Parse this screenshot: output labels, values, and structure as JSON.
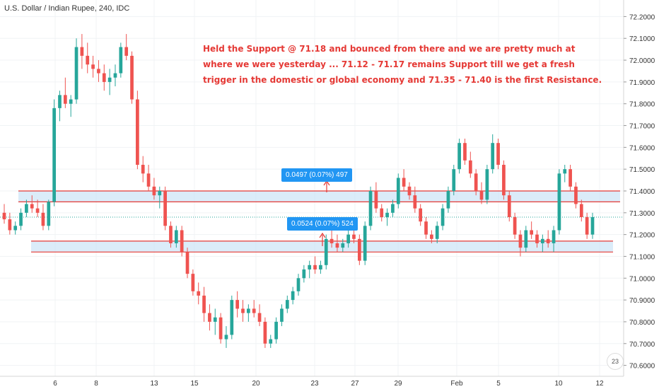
{
  "header": {
    "title": "U.S. Dollar / Indian Rupee, 240, IDC"
  },
  "annotation": {
    "lines": [
      "Held the Support @ 71.18 and bounced from there and we are pretty much at",
      "where we were yesterday ... 71.12 - 71.17 remains Support till we get a fresh",
      "trigger in the domestic or global economy and 71.35 - 71.40 is the first Resistance."
    ]
  },
  "measures": [
    {
      "text": "0.0497 (0.07%) 497"
    },
    {
      "text": "0.0524 (0.07%) 524"
    }
  ],
  "badge": {
    "text": "23"
  },
  "colors": {
    "up": "#26a69a",
    "down": "#ef5350",
    "zone_fill": "#cfe6f7",
    "zone_line": "#e53935",
    "label_bg": "#2196f3"
  },
  "chart_data": {
    "type": "candlestick",
    "title": "U.S. Dollar / Indian Rupee, 240, IDC",
    "ylim": [
      70.55,
      72.25
    ],
    "y_ticks": [
      "72.2000",
      "72.1000",
      "72.0000",
      "71.9000",
      "71.8000",
      "71.7000",
      "71.6000",
      "71.5000",
      "71.4000",
      "71.3000",
      "71.2000",
      "71.1000",
      "71.0000",
      "70.9000",
      "70.8000",
      "70.7000",
      "70.6000"
    ],
    "x_tick_labels": [
      "6",
      "8",
      "13",
      "15",
      "20",
      "23",
      "27",
      "29",
      "Feb",
      "5",
      "10",
      "12"
    ],
    "last_price": 71.28,
    "zones": [
      {
        "name": "Resistance",
        "low": 71.35,
        "high": 71.4
      },
      {
        "name": "Support",
        "low": 71.12,
        "high": 71.17
      }
    ],
    "candles": [
      [
        71.3,
        71.34,
        71.25,
        71.27
      ],
      [
        71.27,
        71.3,
        71.2,
        71.22
      ],
      [
        71.22,
        71.26,
        71.2,
        71.24
      ],
      [
        71.24,
        71.32,
        71.22,
        71.3
      ],
      [
        71.3,
        71.36,
        71.28,
        71.34
      ],
      [
        71.34,
        71.38,
        71.3,
        71.32
      ],
      [
        71.32,
        71.36,
        71.28,
        71.3
      ],
      [
        71.3,
        71.34,
        71.22,
        71.24
      ],
      [
        71.24,
        71.36,
        71.22,
        71.35
      ],
      [
        71.35,
        71.82,
        71.33,
        71.78
      ],
      [
        71.78,
        71.86,
        71.72,
        71.84
      ],
      [
        71.84,
        71.92,
        71.78,
        71.8
      ],
      [
        71.8,
        71.84,
        71.74,
        71.82
      ],
      [
        71.82,
        72.1,
        71.8,
        72.06
      ],
      [
        72.06,
        72.12,
        71.96,
        72.02
      ],
      [
        72.02,
        72.08,
        71.94,
        71.98
      ],
      [
        71.98,
        72.02,
        71.92,
        71.96
      ],
      [
        71.96,
        72.0,
        71.9,
        71.94
      ],
      [
        71.94,
        71.98,
        71.86,
        71.9
      ],
      [
        71.9,
        71.96,
        71.84,
        71.92
      ],
      [
        71.92,
        71.98,
        71.88,
        71.94
      ],
      [
        71.94,
        72.08,
        71.92,
        72.06
      ],
      [
        72.06,
        72.12,
        72.0,
        72.02
      ],
      [
        72.02,
        72.04,
        71.8,
        71.82
      ],
      [
        71.82,
        71.86,
        71.5,
        71.52
      ],
      [
        71.52,
        71.56,
        71.44,
        71.48
      ],
      [
        71.48,
        71.52,
        71.4,
        71.42
      ],
      [
        71.42,
        71.46,
        71.36,
        71.38
      ],
      [
        71.38,
        71.42,
        71.32,
        71.4
      ],
      [
        71.4,
        71.42,
        71.22,
        71.24
      ],
      [
        71.24,
        71.26,
        71.14,
        71.16
      ],
      [
        71.16,
        71.24,
        71.14,
        71.22
      ],
      [
        71.22,
        71.24,
        71.1,
        71.12
      ],
      [
        71.12,
        71.14,
        71.0,
        71.02
      ],
      [
        71.02,
        71.04,
        70.92,
        70.94
      ],
      [
        70.94,
        70.98,
        70.88,
        70.92
      ],
      [
        70.92,
        70.96,
        70.8,
        70.84
      ],
      [
        70.84,
        70.88,
        70.76,
        70.8
      ],
      [
        70.8,
        70.86,
        70.74,
        70.82
      ],
      [
        70.82,
        70.84,
        70.7,
        70.72
      ],
      [
        70.72,
        70.78,
        70.68,
        70.74
      ],
      [
        70.74,
        70.92,
        70.72,
        70.9
      ],
      [
        70.9,
        70.94,
        70.82,
        70.86
      ],
      [
        70.86,
        70.9,
        70.8,
        70.84
      ],
      [
        70.84,
        70.88,
        70.8,
        70.86
      ],
      [
        70.86,
        70.9,
        70.82,
        70.84
      ],
      [
        70.84,
        70.88,
        70.78,
        70.8
      ],
      [
        70.8,
        70.82,
        70.68,
        70.7
      ],
      [
        70.7,
        70.74,
        70.68,
        70.72
      ],
      [
        70.72,
        70.82,
        70.7,
        70.8
      ],
      [
        70.8,
        70.88,
        70.78,
        70.86
      ],
      [
        70.86,
        70.92,
        70.84,
        70.9
      ],
      [
        70.9,
        70.96,
        70.88,
        70.94
      ],
      [
        70.94,
        71.02,
        70.92,
        71.0
      ],
      [
        71.0,
        71.06,
        70.98,
        71.04
      ],
      [
        71.04,
        71.08,
        71.0,
        71.06
      ],
      [
        71.06,
        71.1,
        71.02,
        71.04
      ],
      [
        71.04,
        71.08,
        71.02,
        71.06
      ],
      [
        71.06,
        71.2,
        71.04,
        71.18
      ],
      [
        71.18,
        71.22,
        71.14,
        71.16
      ],
      [
        71.16,
        71.2,
        71.12,
        71.14
      ],
      [
        71.14,
        71.18,
        71.12,
        71.16
      ],
      [
        71.16,
        71.22,
        71.14,
        71.2
      ],
      [
        71.2,
        71.24,
        71.16,
        71.18
      ],
      [
        71.18,
        71.2,
        71.06,
        71.08
      ],
      [
        71.08,
        71.26,
        71.06,
        71.24
      ],
      [
        71.24,
        71.42,
        71.22,
        71.4
      ],
      [
        71.4,
        71.44,
        71.3,
        71.32
      ],
      [
        71.32,
        71.34,
        71.26,
        71.28
      ],
      [
        71.28,
        71.32,
        71.24,
        71.3
      ],
      [
        71.3,
        71.36,
        71.28,
        71.34
      ],
      [
        71.34,
        71.48,
        71.32,
        71.46
      ],
      [
        71.46,
        71.5,
        71.4,
        71.42
      ],
      [
        71.42,
        71.44,
        71.36,
        71.38
      ],
      [
        71.38,
        71.42,
        71.3,
        71.32
      ],
      [
        71.32,
        71.34,
        71.24,
        71.26
      ],
      [
        71.26,
        71.28,
        71.18,
        71.2
      ],
      [
        71.2,
        71.22,
        71.16,
        71.18
      ],
      [
        71.18,
        71.26,
        71.16,
        71.24
      ],
      [
        71.24,
        71.34,
        71.22,
        71.32
      ],
      [
        71.32,
        71.42,
        71.3,
        71.4
      ],
      [
        71.4,
        71.52,
        71.38,
        71.5
      ],
      [
        71.5,
        71.64,
        71.48,
        71.62
      ],
      [
        71.62,
        71.64,
        71.52,
        71.54
      ],
      [
        71.54,
        71.58,
        71.46,
        71.48
      ],
      [
        71.48,
        71.5,
        71.38,
        71.4
      ],
      [
        71.4,
        71.44,
        71.34,
        71.36
      ],
      [
        71.36,
        71.52,
        71.34,
        71.5
      ],
      [
        71.5,
        71.66,
        71.48,
        71.62
      ],
      [
        71.62,
        71.64,
        71.5,
        71.52
      ],
      [
        71.52,
        71.54,
        71.36,
        71.38
      ],
      [
        71.38,
        71.4,
        71.26,
        71.28
      ],
      [
        71.28,
        71.3,
        71.18,
        71.2
      ],
      [
        71.2,
        71.22,
        71.1,
        71.14
      ],
      [
        71.14,
        71.24,
        71.12,
        71.22
      ],
      [
        71.22,
        71.26,
        71.18,
        71.2
      ],
      [
        71.2,
        71.22,
        71.14,
        71.16
      ],
      [
        71.16,
        71.2,
        71.12,
        71.18
      ],
      [
        71.18,
        71.22,
        71.14,
        71.16
      ],
      [
        71.16,
        71.24,
        71.12,
        71.22
      ],
      [
        71.22,
        71.5,
        71.2,
        71.48
      ],
      [
        71.48,
        71.52,
        71.44,
        71.5
      ],
      [
        71.5,
        71.52,
        71.4,
        71.42
      ],
      [
        71.42,
        71.44,
        71.32,
        71.34
      ],
      [
        71.34,
        71.36,
        71.26,
        71.28
      ],
      [
        71.28,
        71.3,
        71.18,
        71.2
      ],
      [
        71.2,
        71.3,
        71.18,
        71.28
      ]
    ]
  }
}
